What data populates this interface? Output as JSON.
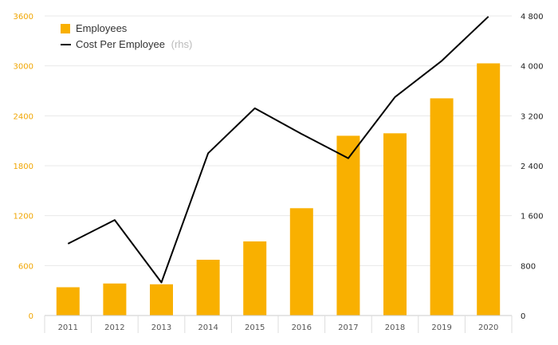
{
  "chart_data": {
    "type": "bar+line",
    "categories": [
      "2011",
      "2012",
      "2013",
      "2014",
      "2015",
      "2016",
      "2017",
      "2018",
      "2019",
      "2020"
    ],
    "series": [
      {
        "name": "Employees",
        "type": "bar",
        "axis": "left",
        "values": [
          340,
          385,
          375,
          670,
          890,
          1290,
          2160,
          2190,
          2610,
          3030
        ]
      },
      {
        "name": "Cost Per Employee",
        "name_suffix": "(rhs)",
        "type": "line",
        "axis": "right",
        "values": [
          1150,
          1530,
          530,
          2600,
          3320,
          2910,
          2520,
          3500,
          4080,
          4790
        ]
      }
    ],
    "left_axis": {
      "ylim": [
        0,
        3600
      ],
      "ticks": [
        0,
        600,
        1200,
        1800,
        2400,
        3000,
        3600
      ],
      "tick_labels": [
        "0",
        "600",
        "1200",
        "1800",
        "2400",
        "3000",
        "3600"
      ]
    },
    "right_axis": {
      "ylim": [
        0,
        4800
      ],
      "ticks": [
        0,
        800,
        1600,
        2400,
        3200,
        4000,
        4800
      ],
      "tick_labels": [
        "0",
        "800",
        "1 600",
        "2 400",
        "3 200",
        "4 000",
        "4 800"
      ]
    },
    "grid": true,
    "legend_position": "top-left",
    "colors": {
      "bar": "#f9b000",
      "line": "#000000",
      "left_tick_text": "#f0a500",
      "gridline": "#e8e8e8"
    }
  }
}
